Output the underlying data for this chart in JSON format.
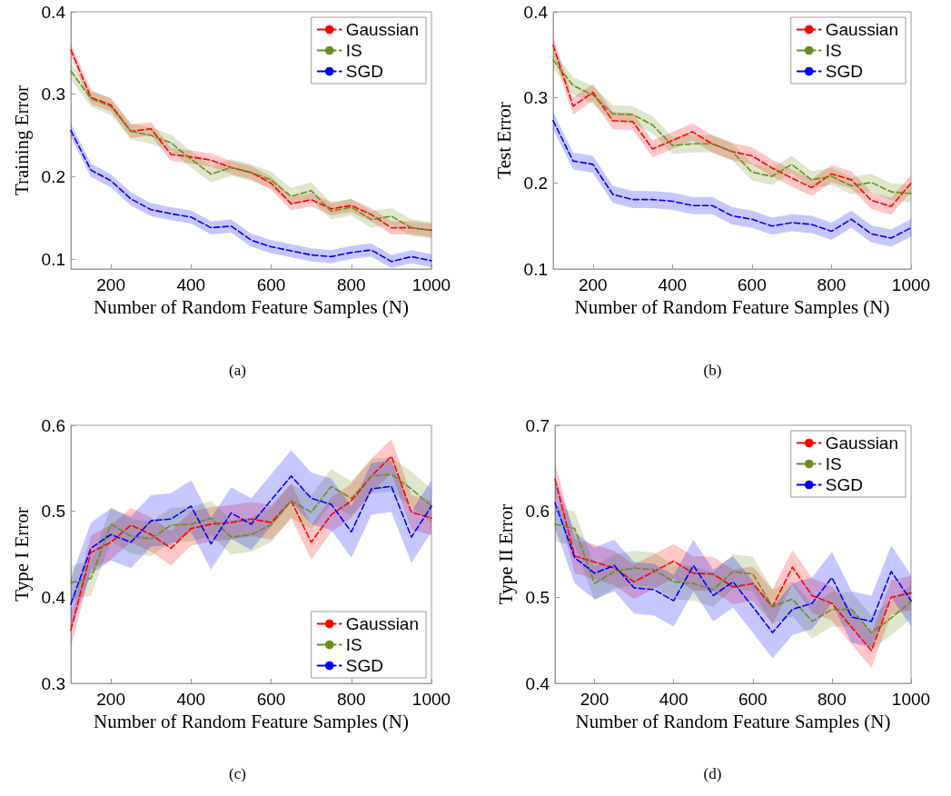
{
  "chart_data": [
    {
      "type": "line",
      "xlabel": "Number of Random Feature Samples (N)",
      "ylabel": "Training Error",
      "annotations": [
        "(a)"
      ],
      "x": [
        100,
        150,
        200,
        250,
        300,
        350,
        400,
        450,
        500,
        550,
        600,
        650,
        700,
        750,
        800,
        850,
        900,
        950,
        1000
      ],
      "xlim": [
        100,
        1000
      ],
      "xticks": [
        200,
        400,
        600,
        800,
        1000
      ],
      "ylim": [
        0.088,
        0.4
      ],
      "yticks": [
        0.1,
        0.2,
        0.3,
        0.4
      ],
      "legend": "top right",
      "line_style": "dashed",
      "series": [
        {
          "name": "Gaussian",
          "color": "#ff0000",
          "values": [
            0.354,
            0.296,
            0.287,
            0.255,
            0.258,
            0.227,
            0.224,
            0.22,
            0.211,
            0.205,
            0.192,
            0.167,
            0.172,
            0.161,
            0.165,
            0.154,
            0.138,
            0.138,
            0.135
          ],
          "lower": [
            0.346,
            0.288,
            0.279,
            0.247,
            0.25,
            0.219,
            0.216,
            0.212,
            0.203,
            0.197,
            0.184,
            0.159,
            0.164,
            0.153,
            0.157,
            0.146,
            0.13,
            0.13,
            0.127
          ],
          "upper": [
            0.362,
            0.304,
            0.295,
            0.263,
            0.266,
            0.235,
            0.232,
            0.228,
            0.219,
            0.213,
            0.2,
            0.175,
            0.18,
            0.169,
            0.173,
            0.162,
            0.146,
            0.146,
            0.143
          ]
        },
        {
          "name": "IS",
          "color": "#6b8f1f",
          "values": [
            0.328,
            0.295,
            0.285,
            0.255,
            0.25,
            0.241,
            0.221,
            0.203,
            0.211,
            0.205,
            0.196,
            0.176,
            0.183,
            0.158,
            0.163,
            0.148,
            0.152,
            0.138,
            0.135
          ],
          "lower": [
            0.318,
            0.285,
            0.275,
            0.245,
            0.24,
            0.231,
            0.211,
            0.193,
            0.201,
            0.195,
            0.186,
            0.166,
            0.173,
            0.148,
            0.153,
            0.138,
            0.142,
            0.128,
            0.125
          ],
          "upper": [
            0.338,
            0.305,
            0.295,
            0.265,
            0.26,
            0.251,
            0.231,
            0.213,
            0.221,
            0.215,
            0.206,
            0.186,
            0.193,
            0.168,
            0.173,
            0.158,
            0.162,
            0.148,
            0.145
          ]
        },
        {
          "name": "SGD",
          "color": "#0000ff",
          "values": [
            0.256,
            0.208,
            0.195,
            0.173,
            0.16,
            0.155,
            0.151,
            0.138,
            0.14,
            0.123,
            0.115,
            0.11,
            0.105,
            0.103,
            0.108,
            0.111,
            0.097,
            0.103,
            0.098
          ],
          "lower": [
            0.248,
            0.2,
            0.187,
            0.165,
            0.152,
            0.147,
            0.143,
            0.13,
            0.132,
            0.115,
            0.107,
            0.102,
            0.097,
            0.095,
            0.1,
            0.103,
            0.089,
            0.095,
            0.09
          ],
          "upper": [
            0.264,
            0.216,
            0.203,
            0.181,
            0.168,
            0.163,
            0.159,
            0.146,
            0.148,
            0.131,
            0.123,
            0.118,
            0.113,
            0.111,
            0.116,
            0.119,
            0.105,
            0.111,
            0.106
          ]
        }
      ]
    },
    {
      "type": "line",
      "xlabel": "Number of Random Feature Samples (N)",
      "ylabel": "Test Error",
      "annotations": [
        "(b)"
      ],
      "x": [
        100,
        150,
        200,
        250,
        300,
        350,
        400,
        450,
        500,
        550,
        600,
        650,
        700,
        750,
        800,
        850,
        900,
        950,
        1000
      ],
      "xlim": [
        100,
        1000
      ],
      "xticks": [
        200,
        400,
        600,
        800,
        1000
      ],
      "ylim": [
        0.1,
        0.4
      ],
      "yticks": [
        0.1,
        0.2,
        0.3,
        0.4
      ],
      "legend": "top right",
      "line_style": "dashed",
      "series": [
        {
          "name": "Gaussian",
          "color": "#ff0000",
          "values": [
            0.361,
            0.29,
            0.306,
            0.273,
            0.272,
            0.24,
            0.25,
            0.26,
            0.246,
            0.237,
            0.232,
            0.218,
            0.206,
            0.195,
            0.211,
            0.204,
            0.18,
            0.173,
            0.2
          ],
          "lower": [
            0.351,
            0.28,
            0.296,
            0.263,
            0.262,
            0.23,
            0.24,
            0.25,
            0.236,
            0.227,
            0.222,
            0.208,
            0.196,
            0.185,
            0.201,
            0.194,
            0.17,
            0.163,
            0.19
          ],
          "upper": [
            0.371,
            0.3,
            0.316,
            0.283,
            0.282,
            0.25,
            0.26,
            0.27,
            0.256,
            0.247,
            0.242,
            0.228,
            0.216,
            0.205,
            0.221,
            0.214,
            0.19,
            0.183,
            0.21
          ]
        },
        {
          "name": "IS",
          "color": "#6b8f1f",
          "values": [
            0.344,
            0.314,
            0.303,
            0.281,
            0.28,
            0.268,
            0.244,
            0.246,
            0.246,
            0.237,
            0.213,
            0.208,
            0.222,
            0.204,
            0.208,
            0.197,
            0.201,
            0.19,
            0.188
          ],
          "lower": [
            0.334,
            0.304,
            0.293,
            0.271,
            0.27,
            0.258,
            0.234,
            0.236,
            0.236,
            0.227,
            0.203,
            0.198,
            0.212,
            0.194,
            0.198,
            0.187,
            0.191,
            0.18,
            0.178
          ],
          "upper": [
            0.354,
            0.324,
            0.313,
            0.291,
            0.29,
            0.278,
            0.254,
            0.256,
            0.256,
            0.247,
            0.223,
            0.218,
            0.232,
            0.214,
            0.218,
            0.207,
            0.211,
            0.2,
            0.198
          ]
        },
        {
          "name": "SGD",
          "color": "#0000ff",
          "values": [
            0.273,
            0.226,
            0.222,
            0.187,
            0.181,
            0.181,
            0.179,
            0.174,
            0.174,
            0.162,
            0.158,
            0.15,
            0.154,
            0.152,
            0.144,
            0.158,
            0.141,
            0.136,
            0.148
          ],
          "lower": [
            0.263,
            0.216,
            0.212,
            0.177,
            0.171,
            0.171,
            0.169,
            0.164,
            0.164,
            0.152,
            0.148,
            0.14,
            0.144,
            0.142,
            0.134,
            0.148,
            0.131,
            0.126,
            0.138
          ],
          "upper": [
            0.283,
            0.236,
            0.232,
            0.197,
            0.191,
            0.191,
            0.189,
            0.184,
            0.184,
            0.172,
            0.168,
            0.16,
            0.164,
            0.162,
            0.154,
            0.168,
            0.151,
            0.146,
            0.158
          ]
        }
      ]
    },
    {
      "type": "line",
      "xlabel": "Number of Random Feature Samples (N)",
      "ylabel": "Type I Error",
      "annotations": [
        "(c)"
      ],
      "x": [
        100,
        150,
        200,
        250,
        300,
        350,
        400,
        450,
        500,
        550,
        600,
        650,
        700,
        750,
        800,
        850,
        900,
        950,
        1000
      ],
      "xlim": [
        100,
        1000
      ],
      "xticks": [
        200,
        400,
        600,
        800,
        1000
      ],
      "ylim": [
        0.3,
        0.6
      ],
      "yticks": [
        0.3,
        0.4,
        0.5,
        0.6
      ],
      "legend": "bottom right",
      "line_style": "dashed",
      "series": [
        {
          "name": "Gaussian",
          "color": "#ff0000",
          "values": [
            0.362,
            0.452,
            0.464,
            0.484,
            0.473,
            0.457,
            0.48,
            0.485,
            0.487,
            0.491,
            0.487,
            0.512,
            0.464,
            0.496,
            0.512,
            0.541,
            0.564,
            0.499,
            0.492
          ],
          "lower": [
            0.342,
            0.432,
            0.444,
            0.464,
            0.453,
            0.437,
            0.46,
            0.465,
            0.467,
            0.471,
            0.467,
            0.492,
            0.444,
            0.476,
            0.492,
            0.521,
            0.544,
            0.479,
            0.472
          ],
          "upper": [
            0.382,
            0.472,
            0.484,
            0.504,
            0.493,
            0.477,
            0.5,
            0.505,
            0.507,
            0.511,
            0.507,
            0.532,
            0.484,
            0.516,
            0.532,
            0.561,
            0.584,
            0.519,
            0.512
          ]
        },
        {
          "name": "IS",
          "color": "#6b8f1f",
          "values": [
            0.417,
            0.422,
            0.485,
            0.471,
            0.468,
            0.484,
            0.485,
            0.492,
            0.47,
            0.473,
            0.484,
            0.512,
            0.499,
            0.529,
            0.515,
            0.541,
            0.543,
            0.526,
            0.506
          ],
          "lower": [
            0.397,
            0.402,
            0.465,
            0.451,
            0.448,
            0.464,
            0.465,
            0.472,
            0.45,
            0.453,
            0.464,
            0.492,
            0.479,
            0.509,
            0.495,
            0.521,
            0.523,
            0.506,
            0.486
          ],
          "upper": [
            0.437,
            0.442,
            0.505,
            0.491,
            0.488,
            0.504,
            0.505,
            0.512,
            0.49,
            0.493,
            0.504,
            0.532,
            0.519,
            0.549,
            0.535,
            0.561,
            0.563,
            0.546,
            0.526
          ]
        },
        {
          "name": "SGD",
          "color": "#0000ff",
          "values": [
            0.392,
            0.457,
            0.473,
            0.464,
            0.489,
            0.491,
            0.506,
            0.462,
            0.498,
            0.485,
            0.513,
            0.541,
            0.515,
            0.508,
            0.476,
            0.526,
            0.529,
            0.47,
            0.506
          ],
          "lower": [
            0.362,
            0.427,
            0.443,
            0.434,
            0.459,
            0.461,
            0.476,
            0.432,
            0.468,
            0.455,
            0.483,
            0.511,
            0.485,
            0.478,
            0.446,
            0.496,
            0.499,
            0.44,
            0.476
          ],
          "upper": [
            0.422,
            0.487,
            0.503,
            0.494,
            0.519,
            0.521,
            0.536,
            0.492,
            0.528,
            0.515,
            0.543,
            0.571,
            0.545,
            0.538,
            0.506,
            0.556,
            0.559,
            0.5,
            0.536
          ]
        }
      ]
    },
    {
      "type": "line",
      "xlabel": "Number of Random Feature Samples (N)",
      "ylabel": "Type II Error",
      "annotations": [
        "(d)"
      ],
      "x": [
        100,
        150,
        200,
        250,
        300,
        350,
        400,
        450,
        500,
        550,
        600,
        650,
        700,
        750,
        800,
        850,
        900,
        950,
        1000
      ],
      "xlim": [
        100,
        1000
      ],
      "xticks": [
        200,
        400,
        600,
        800,
        1000
      ],
      "ylim": [
        0.4,
        0.7
      ],
      "yticks": [
        0.4,
        0.5,
        0.6,
        0.7
      ],
      "legend": "top right",
      "line_style": "dashed",
      "series": [
        {
          "name": "Gaussian",
          "color": "#ff0000",
          "values": [
            0.637,
            0.548,
            0.541,
            0.534,
            0.518,
            0.53,
            0.542,
            0.528,
            0.527,
            0.512,
            0.516,
            0.489,
            0.535,
            0.502,
            0.493,
            0.465,
            0.438,
            0.5,
            0.505
          ],
          "lower": [
            0.617,
            0.528,
            0.521,
            0.514,
            0.498,
            0.51,
            0.522,
            0.508,
            0.507,
            0.492,
            0.496,
            0.469,
            0.515,
            0.482,
            0.473,
            0.445,
            0.418,
            0.48,
            0.485
          ],
          "upper": [
            0.657,
            0.568,
            0.561,
            0.554,
            0.538,
            0.55,
            0.562,
            0.548,
            0.547,
            0.532,
            0.536,
            0.509,
            0.555,
            0.522,
            0.513,
            0.485,
            0.458,
            0.52,
            0.525
          ]
        },
        {
          "name": "IS",
          "color": "#6b8f1f",
          "values": [
            0.585,
            0.58,
            0.516,
            0.53,
            0.534,
            0.532,
            0.518,
            0.516,
            0.509,
            0.53,
            0.527,
            0.489,
            0.498,
            0.472,
            0.486,
            0.486,
            0.459,
            0.476,
            0.495
          ],
          "lower": [
            0.565,
            0.56,
            0.496,
            0.51,
            0.514,
            0.512,
            0.498,
            0.496,
            0.489,
            0.51,
            0.507,
            0.469,
            0.478,
            0.452,
            0.466,
            0.466,
            0.439,
            0.456,
            0.475
          ],
          "upper": [
            0.605,
            0.6,
            0.536,
            0.55,
            0.554,
            0.552,
            0.538,
            0.536,
            0.529,
            0.55,
            0.547,
            0.509,
            0.518,
            0.492,
            0.506,
            0.506,
            0.479,
            0.496,
            0.515
          ]
        },
        {
          "name": "SGD",
          "color": "#0000ff",
          "values": [
            0.61,
            0.546,
            0.528,
            0.537,
            0.511,
            0.509,
            0.496,
            0.537,
            0.502,
            0.518,
            0.489,
            0.459,
            0.486,
            0.493,
            0.523,
            0.477,
            0.472,
            0.53,
            0.496
          ],
          "lower": [
            0.58,
            0.516,
            0.498,
            0.507,
            0.481,
            0.479,
            0.466,
            0.507,
            0.472,
            0.488,
            0.459,
            0.429,
            0.456,
            0.463,
            0.493,
            0.447,
            0.442,
            0.5,
            0.466
          ],
          "upper": [
            0.64,
            0.576,
            0.558,
            0.567,
            0.541,
            0.539,
            0.526,
            0.567,
            0.532,
            0.548,
            0.519,
            0.489,
            0.516,
            0.523,
            0.553,
            0.507,
            0.502,
            0.56,
            0.526
          ]
        }
      ]
    }
  ]
}
